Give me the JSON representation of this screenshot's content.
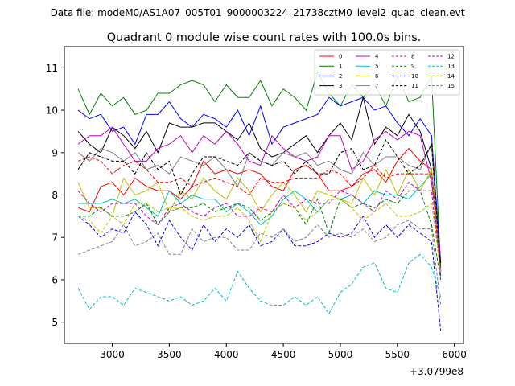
{
  "chart_data": {
    "type": "line",
    "suptitle": "Data file: modeM0/AS1A07_005T01_9000003224_21738cztM0_level2_quad_clean.evt",
    "title": "Quadrant 0 module wise count rates with 100.0s bins.",
    "xlabel": "",
    "ylabel": "",
    "x_offset_label": "+3.0799e8",
    "xlim": [
      2580,
      6080
    ],
    "ylim": [
      4.5,
      11.5
    ],
    "xticks": [
      3000,
      3500,
      4000,
      4500,
      5000,
      5500,
      6000
    ],
    "yticks": [
      5,
      6,
      7,
      8,
      9,
      10,
      11
    ],
    "grid": false,
    "legend_position": "top-right",
    "x": [
      2700,
      2800,
      2900,
      3000,
      3100,
      3200,
      3300,
      3400,
      3500,
      3600,
      3700,
      3800,
      3900,
      4000,
      4100,
      4200,
      4300,
      4400,
      4500,
      4600,
      4700,
      4800,
      4900,
      5000,
      5100,
      5200,
      5300,
      5400,
      5500,
      5600,
      5700,
      5800,
      5880
    ],
    "series": [
      {
        "name": "0",
        "color": "#ff0000",
        "dash": "solid",
        "values": [
          7.7,
          7.6,
          8.2,
          8.3,
          8.0,
          8.4,
          8.2,
          8.1,
          8.1,
          7.9,
          8.2,
          8.8,
          8.5,
          8.6,
          8.5,
          8.6,
          8.5,
          8.2,
          8.1,
          8.6,
          8.7,
          8.5,
          8.1,
          8.1,
          8.2,
          8.5,
          8.6,
          8.3,
          8.8,
          9.1,
          8.8,
          8.6,
          6.2
        ]
      },
      {
        "name": "1",
        "color": "#008000",
        "dash": "solid",
        "values": [
          10.5,
          9.9,
          10.4,
          10.1,
          10.3,
          9.9,
          10.0,
          10.4,
          10.4,
          10.6,
          10.7,
          10.6,
          10.2,
          10.6,
          10.3,
          10.3,
          10.7,
          10.1,
          10.5,
          10.3,
          10.0,
          10.9,
          10.4,
          10.1,
          10.6,
          10.3,
          10.6,
          10.1,
          10.8,
          10.2,
          10.3,
          10.8,
          6.3
        ]
      },
      {
        "name": "2",
        "color": "#0000ff",
        "dash": "solid",
        "values": [
          10.0,
          9.8,
          9.9,
          9.5,
          9.6,
          9.2,
          9.9,
          9.9,
          10.2,
          9.8,
          9.6,
          9.9,
          9.8,
          9.6,
          10.0,
          9.4,
          10.1,
          9.2,
          9.6,
          9.7,
          9.8,
          9.9,
          10.3,
          10.1,
          10.2,
          10.3,
          10.0,
          10.1,
          9.7,
          9.4,
          9.8,
          9.4,
          6.4
        ]
      },
      {
        "name": "3",
        "color": "#000000",
        "dash": "solid",
        "values": [
          9.5,
          9.2,
          9.0,
          9.6,
          9.4,
          9.1,
          9.5,
          9.0,
          9.7,
          9.6,
          9.6,
          9.7,
          9.7,
          9.5,
          9.3,
          9.7,
          9.1,
          8.9,
          9.0,
          9.2,
          9.4,
          9.0,
          9.4,
          9.7,
          9.3,
          10.3,
          9.2,
          9.6,
          9.4,
          9.9,
          9.5,
          8.6,
          6.4
        ]
      },
      {
        "name": "4",
        "color": "#c000c0",
        "dash": "solid",
        "values": [
          9.2,
          9.4,
          9.4,
          9.6,
          9.2,
          8.8,
          8.8,
          9.1,
          9.2,
          9.4,
          9.0,
          9.4,
          9.2,
          9.5,
          9.2,
          8.8,
          8.7,
          9.4,
          9.1,
          8.9,
          8.8,
          8.9,
          9.4,
          9.4,
          8.6,
          8.8,
          9.3,
          9.5,
          9.3,
          9.5,
          9.4,
          8.3,
          6.5
        ]
      },
      {
        "name": "5",
        "color": "#00bfbf",
        "dash": "solid",
        "values": [
          7.8,
          7.8,
          7.8,
          7.9,
          7.8,
          7.9,
          7.7,
          7.5,
          8.1,
          7.8,
          8.0,
          7.9,
          7.9,
          7.6,
          7.8,
          7.6,
          7.3,
          7.5,
          7.9,
          8.1,
          7.9,
          7.6,
          7.9,
          7.9,
          8.0,
          7.8,
          8.1,
          8.0,
          8.0,
          7.9,
          8.2,
          8.5,
          6.1
        ]
      },
      {
        "name": "6",
        "color": "#bfbf00",
        "dash": "solid",
        "values": [
          8.3,
          7.7,
          7.7,
          7.5,
          8.4,
          8.0,
          8.1,
          8.3,
          7.6,
          8.1,
          7.9,
          8.4,
          8.1,
          7.9,
          8.4,
          8.1,
          7.6,
          8.0,
          8.3,
          8.0,
          7.6,
          8.1,
          8.0,
          7.9,
          7.8,
          8.4,
          8.0,
          8.6,
          8.0,
          8.6,
          8.1,
          8.6,
          6.1
        ]
      },
      {
        "name": "7",
        "color": "#808080",
        "dash": "solid",
        "values": [
          9.0,
          8.8,
          9.1,
          9.0,
          8.8,
          9.0,
          8.6,
          8.7,
          8.5,
          8.9,
          8.8,
          8.7,
          8.9,
          8.6,
          8.2,
          9.0,
          8.8,
          8.7,
          9.0,
          8.9,
          9.0,
          8.7,
          8.8,
          8.6,
          8.5,
          9.0,
          8.7,
          8.9,
          8.9,
          8.7,
          8.6,
          9.2,
          6.0
        ]
      },
      {
        "name": "8",
        "color": "#ff0000",
        "dash": "dashed",
        "values": [
          8.8,
          8.9,
          8.8,
          8.5,
          8.7,
          8.8,
          8.6,
          8.3,
          8.3,
          8.4,
          8.2,
          8.3,
          8.4,
          8.3,
          8.2,
          8.0,
          8.4,
          8.3,
          8.3,
          8.4,
          8.4,
          8.4,
          8.6,
          8.5,
          8.2,
          8.4,
          8.7,
          8.4,
          8.5,
          8.5,
          8.5,
          8.5,
          6.1
        ]
      },
      {
        "name": "9",
        "color": "#008000",
        "dash": "dashed",
        "values": [
          7.5,
          7.5,
          7.7,
          7.5,
          7.5,
          7.6,
          7.8,
          7.3,
          7.6,
          7.7,
          7.7,
          7.8,
          7.6,
          7.7,
          7.8,
          7.7,
          7.4,
          7.6,
          7.8,
          7.7,
          7.3,
          7.9,
          7.1,
          7.9,
          7.7,
          7.8,
          7.7,
          7.9,
          7.8,
          8.1,
          8.1,
          7.3,
          6.0
        ]
      },
      {
        "name": "10",
        "color": "#0000ff",
        "dash": "dashed",
        "values": [
          7.5,
          7.3,
          7.0,
          7.2,
          7.1,
          7.6,
          7.3,
          6.8,
          7.4,
          7.0,
          6.7,
          7.3,
          6.9,
          7.2,
          7.0,
          7.3,
          6.8,
          6.9,
          7.2,
          6.8,
          6.8,
          6.9,
          7.1,
          7.0,
          7.1,
          7.5,
          7.0,
          7.3,
          7.0,
          7.3,
          7.1,
          6.9,
          4.8
        ]
      },
      {
        "name": "11",
        "color": "#000000",
        "dash": "dashed",
        "values": [
          8.6,
          9.0,
          8.9,
          8.8,
          8.8,
          8.5,
          9.0,
          8.6,
          8.8,
          8.0,
          8.5,
          8.9,
          8.9,
          8.8,
          8.7,
          9.0,
          8.8,
          8.7,
          8.8,
          8.5,
          8.8,
          8.5,
          8.5,
          9.0,
          9.1,
          8.6,
          8.7,
          9.3,
          8.9,
          8.5,
          8.7,
          9.2,
          6.2
        ]
      },
      {
        "name": "12",
        "color": "#c000c0",
        "dash": "dashed",
        "values": [
          8.1,
          7.8,
          7.6,
          7.8,
          7.8,
          7.8,
          7.5,
          7.3,
          7.7,
          7.8,
          7.6,
          7.5,
          7.7,
          7.8,
          7.5,
          7.5,
          7.7,
          7.6,
          8.0,
          7.7,
          7.9,
          7.8,
          7.8,
          8.1,
          8.0,
          7.8,
          7.6,
          8.1,
          7.9,
          8.3,
          8.1,
          8.1,
          6.1
        ]
      },
      {
        "name": "13",
        "color": "#00bfbf",
        "dash": "dashed",
        "values": [
          5.8,
          5.3,
          5.6,
          5.6,
          5.4,
          5.8,
          5.7,
          5.6,
          5.5,
          5.6,
          5.4,
          5.5,
          5.8,
          5.5,
          6.2,
          5.8,
          5.5,
          5.4,
          5.4,
          5.6,
          5.4,
          5.6,
          5.2,
          5.7,
          5.9,
          6.3,
          6.4,
          5.8,
          5.7,
          6.4,
          6.6,
          6.3,
          5.6
        ]
      },
      {
        "name": "14",
        "color": "#bfbf00",
        "dash": "dashed",
        "values": [
          7.5,
          7.4,
          7.1,
          7.5,
          7.3,
          7.8,
          7.8,
          7.6,
          7.7,
          7.7,
          7.5,
          7.4,
          7.5,
          7.5,
          7.7,
          7.4,
          6.9,
          7.6,
          7.8,
          7.7,
          7.4,
          7.6,
          7.9,
          7.9,
          7.7,
          7.4,
          7.6,
          7.8,
          7.5,
          7.5,
          7.6,
          7.8,
          6.2
        ]
      },
      {
        "name": "15",
        "color": "#808080",
        "dash": "dashed",
        "values": [
          6.6,
          6.7,
          6.8,
          6.9,
          7.3,
          6.8,
          6.9,
          7.1,
          6.6,
          6.6,
          7.2,
          6.9,
          7.0,
          7.0,
          6.7,
          6.7,
          7.1,
          7.0,
          7.2,
          6.9,
          7.0,
          7.3,
          7.0,
          7.1,
          7.0,
          7.2,
          6.9,
          7.0,
          7.3,
          7.4,
          7.2,
          7.2,
          5.4
        ]
      }
    ]
  }
}
